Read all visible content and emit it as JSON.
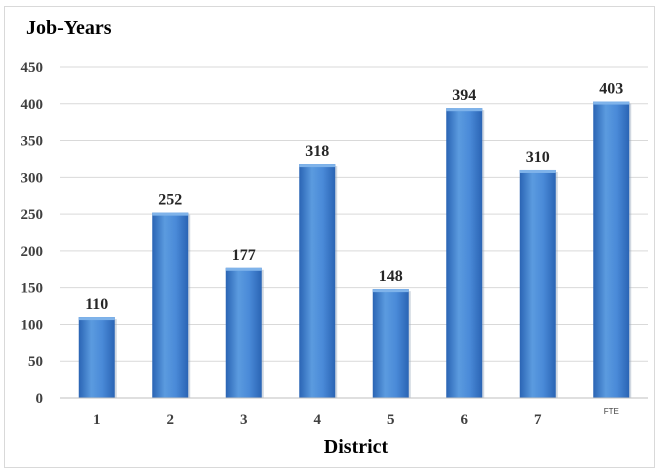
{
  "chart_data": {
    "type": "bar",
    "ylabel": "Job-Years",
    "xlabel": "District",
    "categories": [
      "1",
      "2",
      "3",
      "4",
      "5",
      "6",
      "7",
      "FTE"
    ],
    "values": [
      110,
      252,
      177,
      318,
      148,
      394,
      310,
      403
    ],
    "ylim": [
      0,
      450
    ],
    "yticks": [
      0,
      50,
      100,
      150,
      200,
      250,
      300,
      350,
      400,
      450
    ],
    "grid": true,
    "legend": "none",
    "colors": {
      "bar_light": "#5b9bdf",
      "bar_mid": "#3a7fd4",
      "bar_dark": "#2a64b4",
      "grid": "#d9d9d9",
      "axis": "#bfbfbf"
    }
  }
}
